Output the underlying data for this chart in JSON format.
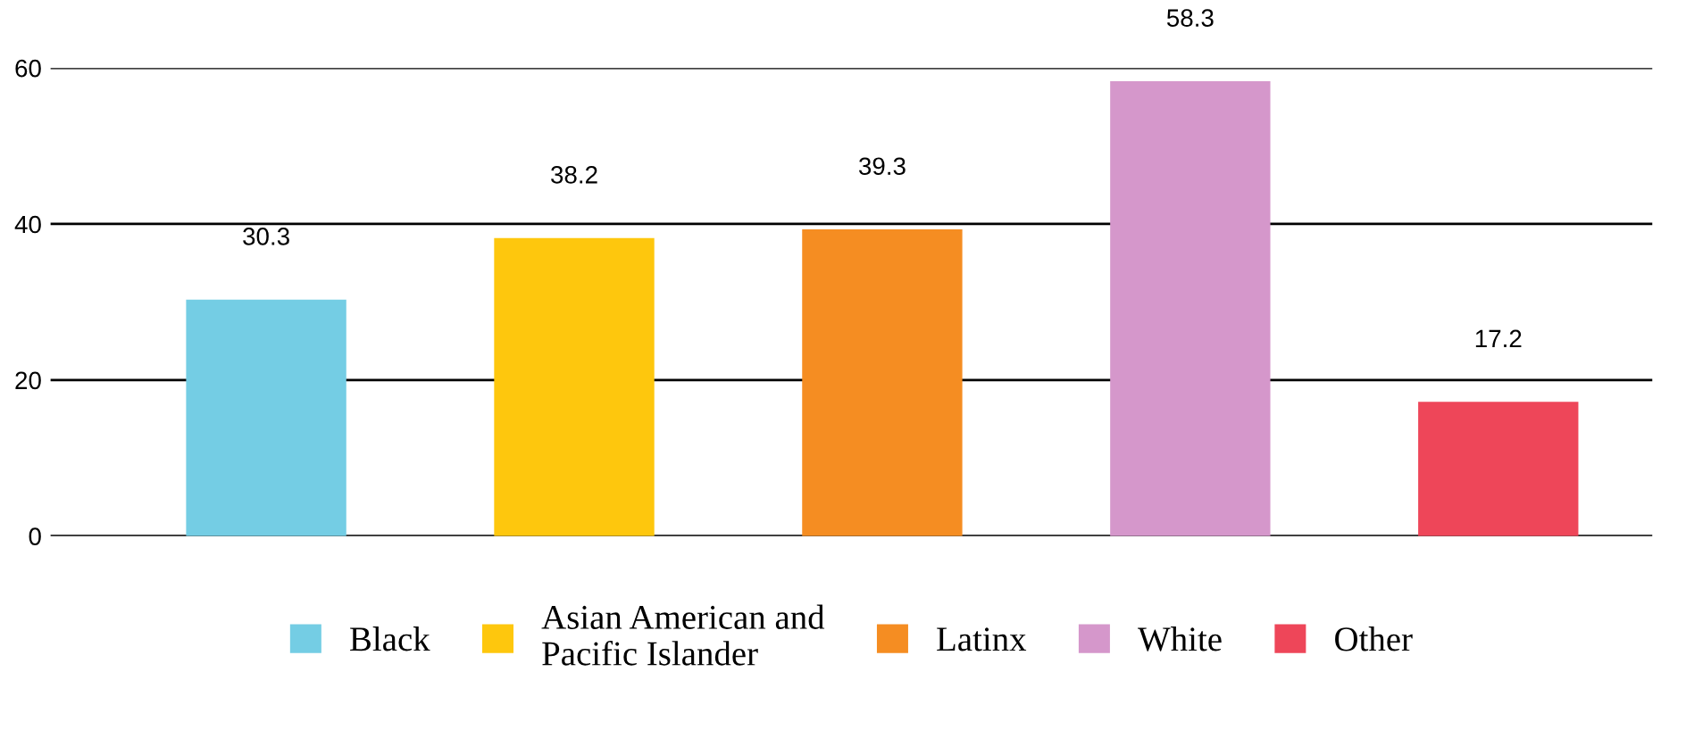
{
  "chart_data": {
    "type": "bar",
    "categories": [
      null,
      null,
      null,
      null,
      null
    ],
    "series": [
      {
        "name": "Black",
        "color": "#74cde4",
        "values": [
          30.3,
          null,
          null,
          null,
          null
        ]
      },
      {
        "name": "Asian American and\nPacific Islander",
        "color": "#fec70d",
        "values": [
          null,
          38.2,
          null,
          null,
          null
        ]
      },
      {
        "name": "Latinx",
        "color": "#f58d22",
        "values": [
          null,
          null,
          39.3,
          null,
          null
        ]
      },
      {
        "name": "White",
        "color": "#d597cb",
        "values": [
          null,
          null,
          null,
          58.3,
          null
        ]
      },
      {
        "name": "Other",
        "color": "#ee4659",
        "values": [
          null,
          null,
          null,
          null,
          17.2
        ]
      }
    ],
    "ylim": [
      0,
      60
    ],
    "yticks": [
      0,
      20,
      40,
      60
    ],
    "grid": "y",
    "legend": "bottom",
    "data_labels": true,
    "tick_labels": "y"
  }
}
